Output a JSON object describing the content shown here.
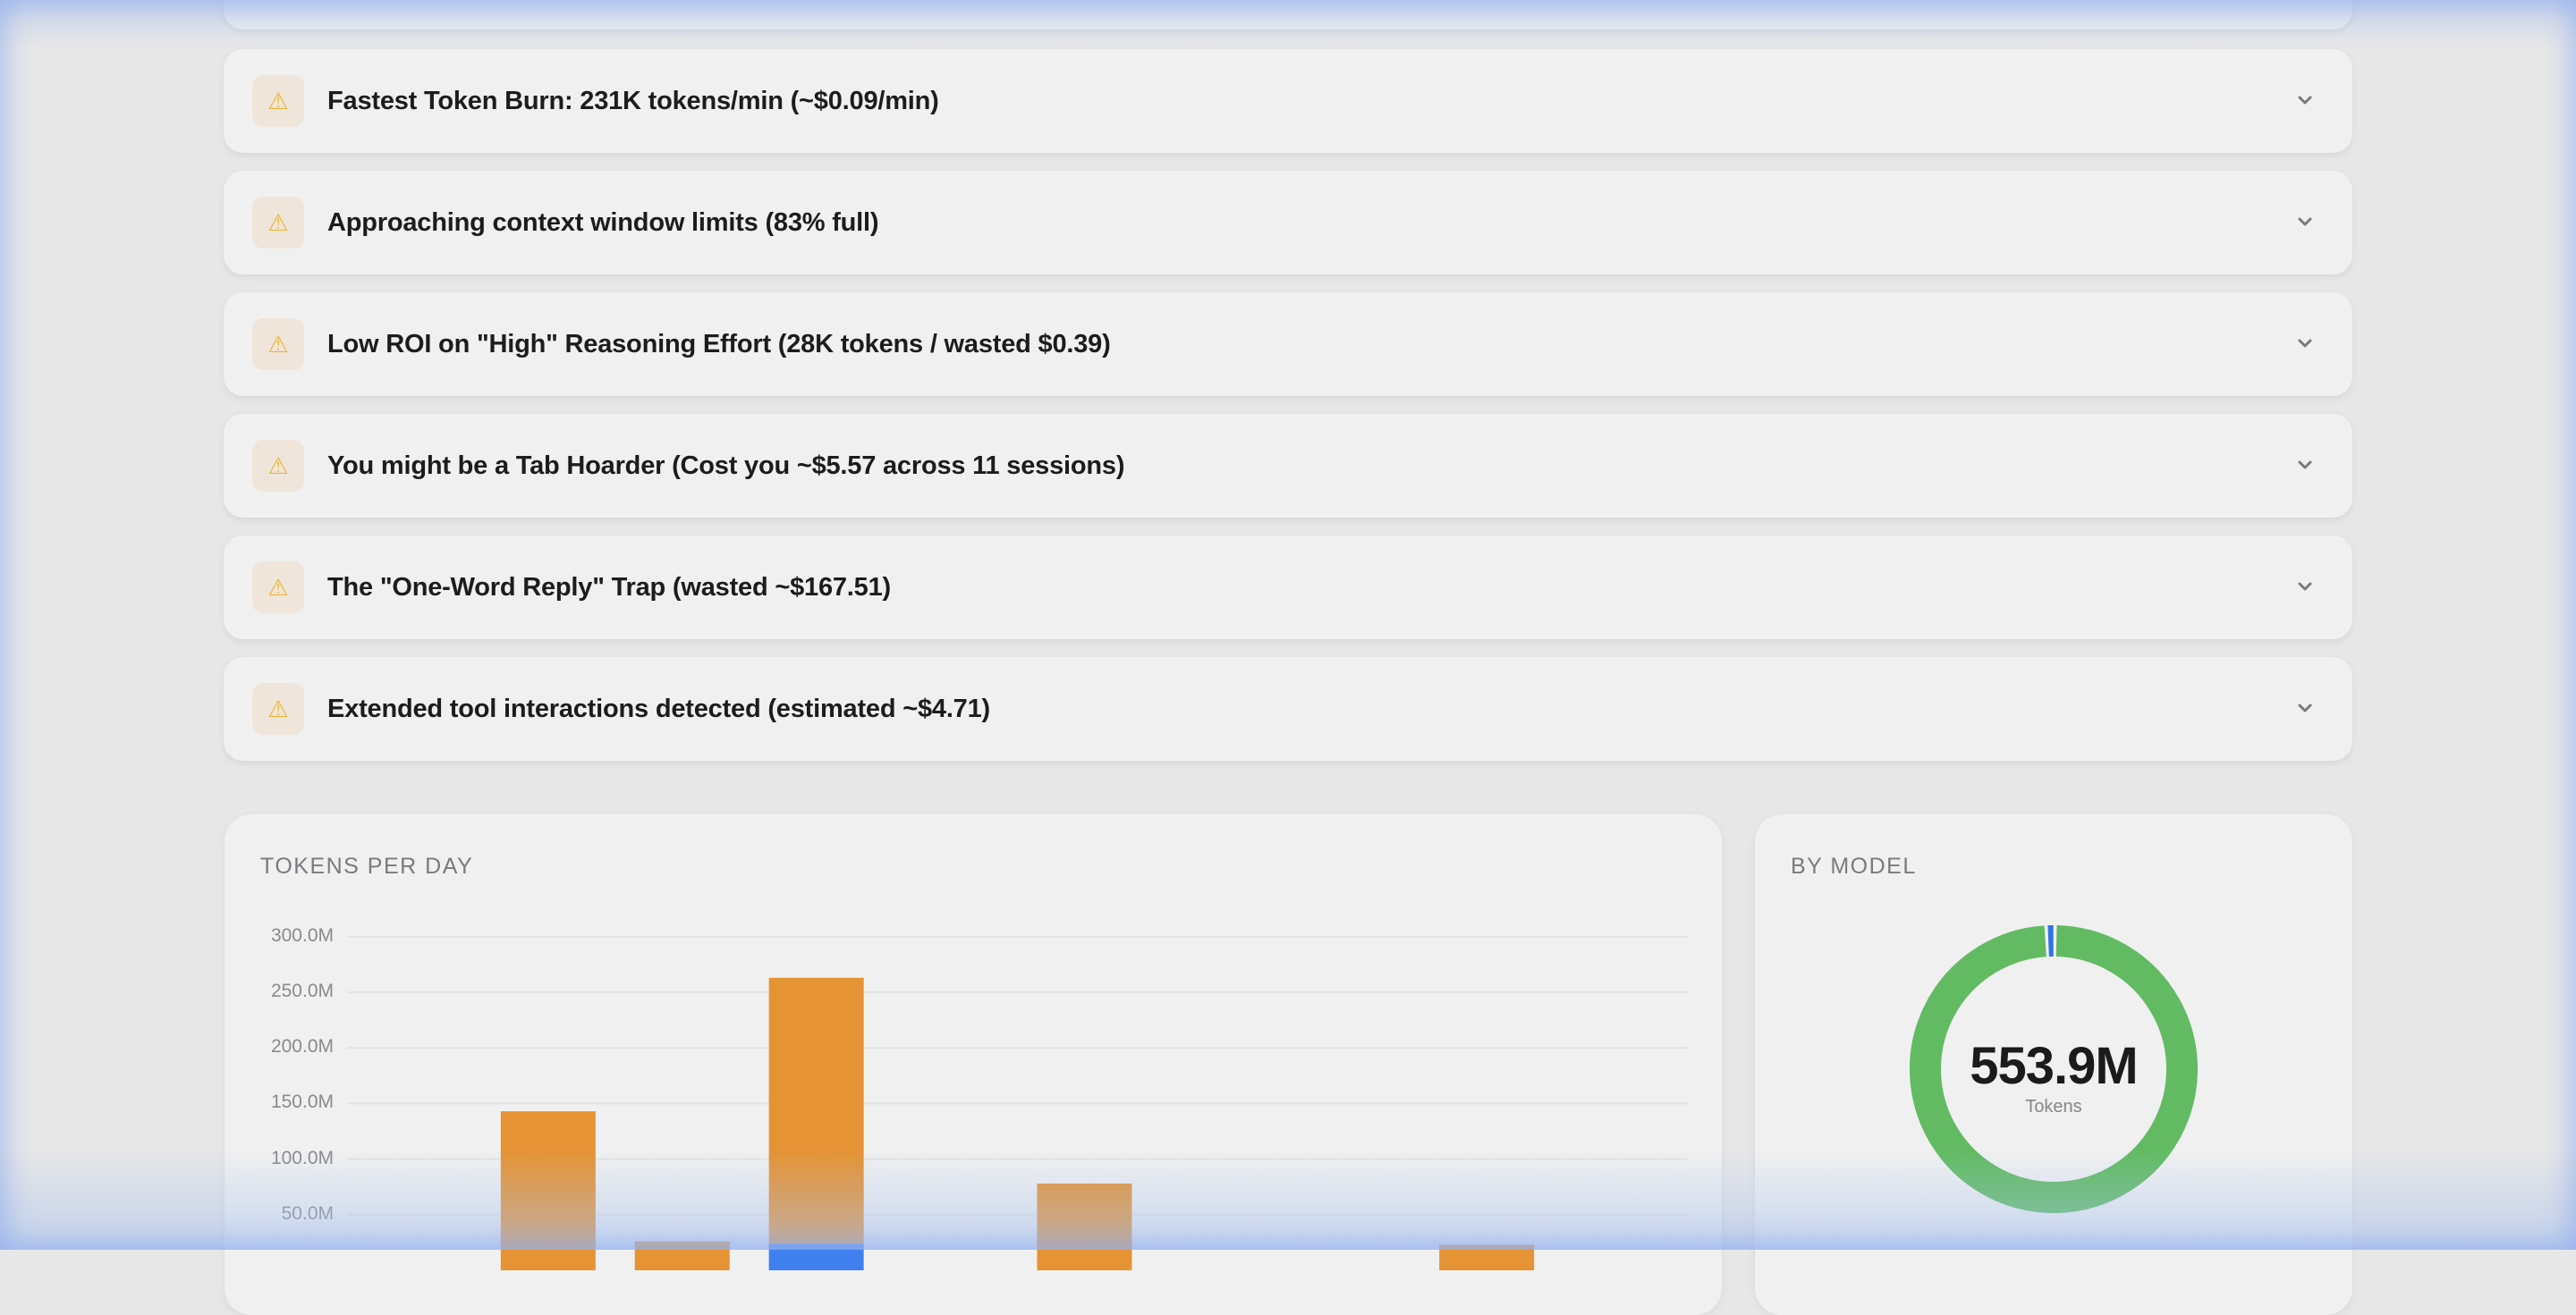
{
  "alerts": [
    {
      "title": "Fastest Token Burn: 231K tokens/min (~$0.09/min)",
      "icon": "warning-icon"
    },
    {
      "title": "Approaching context window limits (83% full)",
      "icon": "warning-icon"
    },
    {
      "title": "Low ROI on \"High\" Reasoning Effort (28K tokens / wasted $0.39)",
      "icon": "warning-icon"
    },
    {
      "title": "You might be a Tab Hoarder (Cost you ~$5.57 across 11 sessions)",
      "icon": "warning-icon"
    },
    {
      "title": "The \"One-Word Reply\" Trap (wasted ~$167.51)",
      "icon": "warning-icon"
    },
    {
      "title": "Extended tool interactions detected (estimated ~$4.71)",
      "icon": "warning-icon"
    }
  ],
  "warning_glyph": "⚠",
  "chart_data": [
    {
      "type": "bar",
      "stacked": true,
      "title": "TOKENS PER DAY",
      "ylim": [
        0,
        300000000
      ],
      "yticks": [
        "50.0M",
        "100.0M",
        "150.0M",
        "200.0M",
        "250.0M",
        "300.0M"
      ],
      "grid": true,
      "slots": 10,
      "series": [
        {
          "color": "#4080ee",
          "values": [
            0,
            0,
            0,
            24,
            0,
            0,
            0,
            0,
            0,
            0
          ]
        },
        {
          "color": "#e59334",
          "values": [
            0,
            143,
            26,
            239,
            0,
            78,
            0,
            0,
            23,
            0
          ]
        }
      ],
      "unit": "M"
    },
    {
      "type": "pie",
      "donut": true,
      "title": "BY MODEL",
      "center_value": "553.9M",
      "center_label": "Tokens",
      "slices": [
        {
          "color": "#62bb63",
          "fraction": 0.99
        },
        {
          "color": "#2f74e8",
          "fraction": 0.01
        }
      ]
    }
  ]
}
